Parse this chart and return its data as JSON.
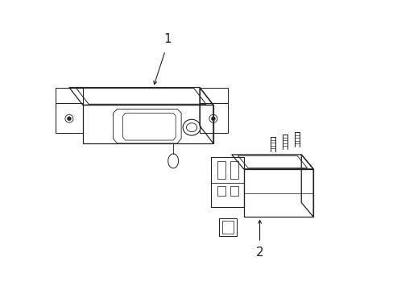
{
  "background_color": "#ffffff",
  "line_color": "#222222",
  "label1_text": "1",
  "label2_text": "2",
  "font_size": 11,
  "lw": 0.9
}
